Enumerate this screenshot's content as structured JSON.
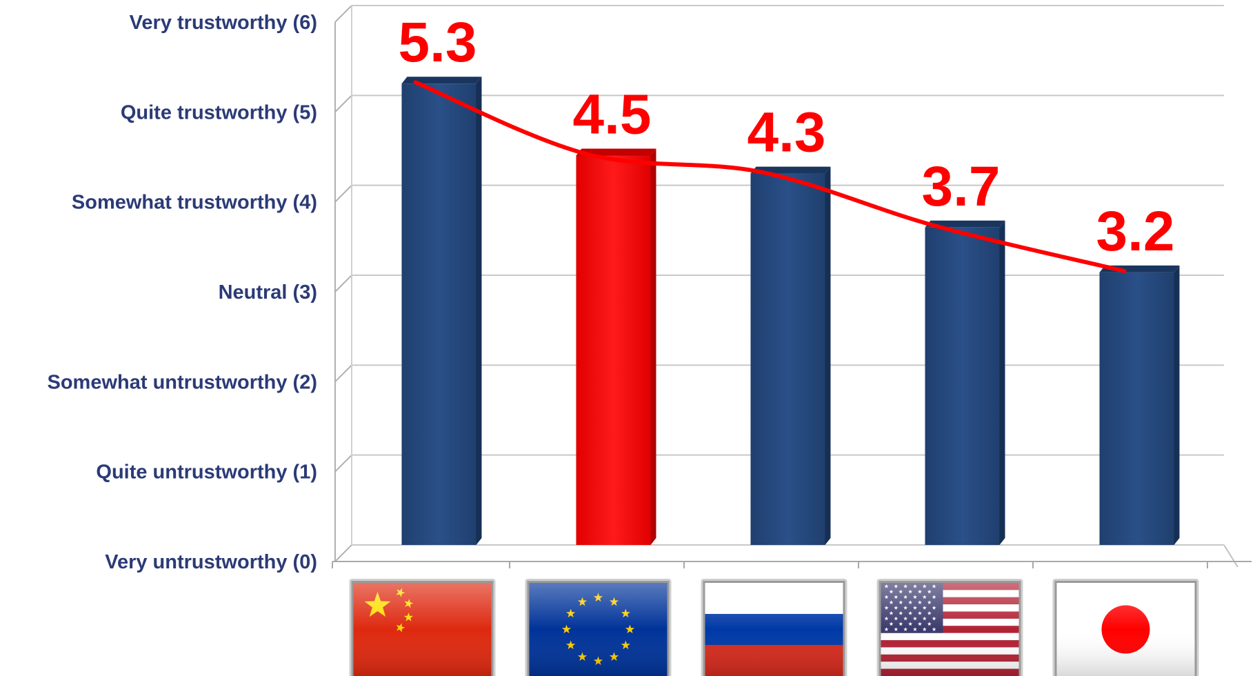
{
  "chart_data": {
    "type": "bar",
    "title": "",
    "xlabel": "",
    "ylabel": "",
    "ylim": [
      0,
      6
    ],
    "y_tick_labels": [
      "Very untrustworthy (0)",
      "Quite untrustworthy (1)",
      "Somewhat untrustworthy (2)",
      "Neutral (3)",
      "Somewhat trustworthy (4)",
      "Quite trustworthy (5)",
      "Very trustworthy (6)"
    ],
    "categories": [
      "China",
      "EU",
      "Russia",
      "USA",
      "Japan"
    ],
    "category_icons": [
      "china-flag-icon",
      "eu-flag-icon",
      "russia-flag-icon",
      "usa-flag-icon",
      "japan-flag-icon"
    ],
    "values": [
      5.3,
      4.5,
      4.3,
      3.7,
      3.2
    ],
    "data_labels": [
      "5.3",
      "4.5",
      "4.3",
      "3.7",
      "3.2"
    ],
    "bar_colors": [
      "#264a7e",
      "#ff0000",
      "#264a7e",
      "#264a7e",
      "#264a7e"
    ],
    "trend_line": {
      "values": [
        5.3,
        4.5,
        4.3,
        3.7,
        3.2
      ],
      "color": "#ff0000"
    },
    "label_color": "#ff0000",
    "axis_label_color": "#2b3a77",
    "grid": true,
    "legend": "none"
  }
}
